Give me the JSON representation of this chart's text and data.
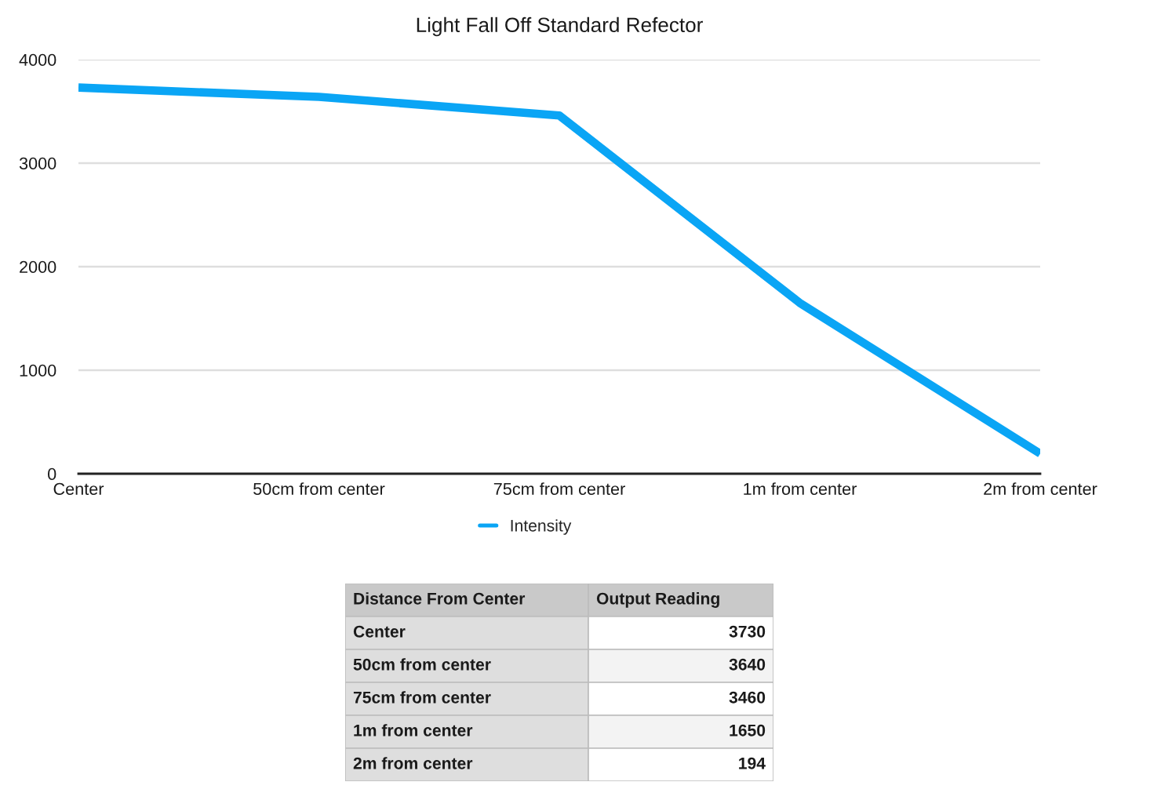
{
  "chart_data": [
    {
      "type": "line",
      "title": "Light Fall Off Standard Refector",
      "categories": [
        "Center",
        "50cm from center",
        "75cm from center",
        "1m from center",
        "2m from center"
      ],
      "series": [
        {
          "name": "Intensity",
          "color": "#0aa5f5",
          "values": [
            3730,
            3640,
            3460,
            1650,
            194
          ]
        }
      ],
      "ylim": [
        0,
        4000
      ],
      "yticks": [
        0,
        1000,
        2000,
        3000,
        4000
      ],
      "grid": "y",
      "legend": "bottom"
    },
    {
      "type": "other",
      "annotations": [
        "Distance From Center",
        "Output Reading"
      ],
      "categories": [
        "Center",
        "50cm from center",
        "75cm from center",
        "1m from center",
        "2m from center"
      ],
      "values": [
        3730,
        3640,
        3460,
        1650,
        194
      ],
      "data_labels": true
    }
  ]
}
